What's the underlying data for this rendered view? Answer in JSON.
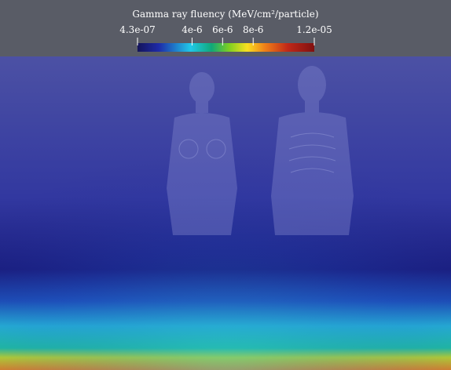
{
  "colorbar": {
    "title": "Gamma ray fluency (MeV/cm²/particle)",
    "range": [
      4.3e-07,
      1.2e-05
    ],
    "ticks": [
      {
        "value": 4.3e-07,
        "label": "4.3e-07"
      },
      {
        "value": 4e-06,
        "label": "4e-6"
      },
      {
        "value": 6e-06,
        "label": "6e-6"
      },
      {
        "value": 8e-06,
        "label": "8e-6"
      },
      {
        "value": 1.2e-05,
        "label": "1.2e-05"
      }
    ]
  }
}
